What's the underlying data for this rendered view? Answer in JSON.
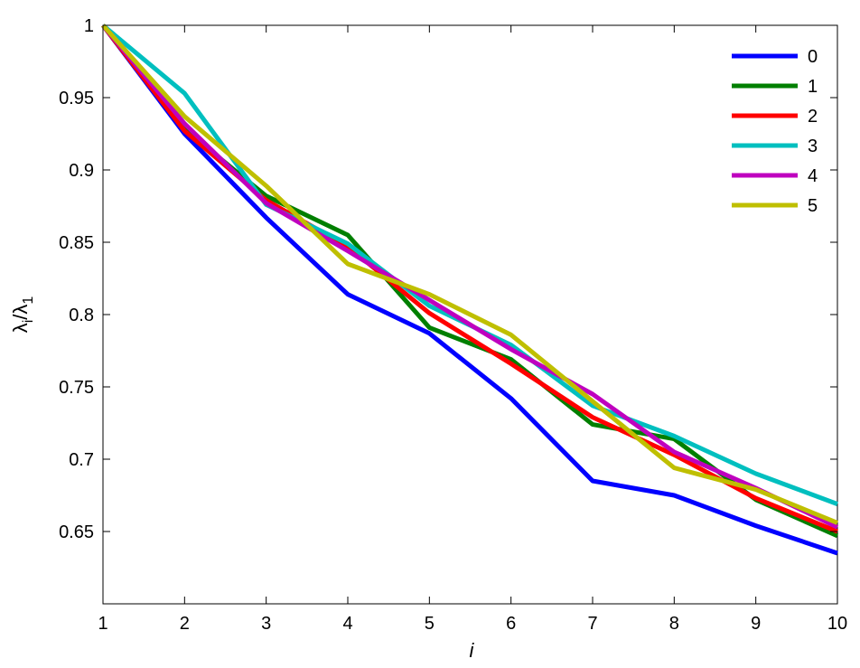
{
  "chart_data": {
    "type": "line",
    "xlabel": "i",
    "ylabel": {
      "base": "λ",
      "numerator_sub": "i",
      "separator": "/",
      "denominator_sub": "1"
    },
    "x": [
      1,
      2,
      3,
      4,
      5,
      6,
      7,
      8,
      9,
      10
    ],
    "xlim": [
      1,
      10
    ],
    "ylim": [
      0.6,
      1.0
    ],
    "xticks": [
      "1",
      "2",
      "3",
      "4",
      "5",
      "6",
      "7",
      "8",
      "9",
      "10"
    ],
    "yticks": [
      "0.65",
      "0.7",
      "0.75",
      "0.8",
      "0.85",
      "0.9",
      "0.95",
      "1"
    ],
    "grid": false,
    "legend_position": "top-right",
    "series": [
      {
        "name": "0",
        "color": "#0000ff",
        "values": [
          1.0,
          0.925,
          0.867,
          0.814,
          0.787,
          0.742,
          0.685,
          0.675,
          0.654,
          0.635
        ]
      },
      {
        "name": "1",
        "color": "#007f00",
        "values": [
          1.0,
          0.928,
          0.882,
          0.855,
          0.791,
          0.769,
          0.724,
          0.714,
          0.672,
          0.647
        ]
      },
      {
        "name": "2",
        "color": "#ff0000",
        "values": [
          1.0,
          0.927,
          0.879,
          0.847,
          0.801,
          0.766,
          0.729,
          0.703,
          0.673,
          0.65
        ]
      },
      {
        "name": "3",
        "color": "#00bfbf",
        "values": [
          1.0,
          0.953,
          0.876,
          0.849,
          0.806,
          0.779,
          0.737,
          0.716,
          0.69,
          0.669
        ]
      },
      {
        "name": "4",
        "color": "#bf00bf",
        "values": [
          1.0,
          0.932,
          0.877,
          0.844,
          0.81,
          0.776,
          0.745,
          0.705,
          0.68,
          0.653
        ]
      },
      {
        "name": "5",
        "color": "#bfbf00",
        "values": [
          1.0,
          0.937,
          0.889,
          0.835,
          0.814,
          0.786,
          0.74,
          0.694,
          0.679,
          0.656
        ]
      }
    ]
  }
}
